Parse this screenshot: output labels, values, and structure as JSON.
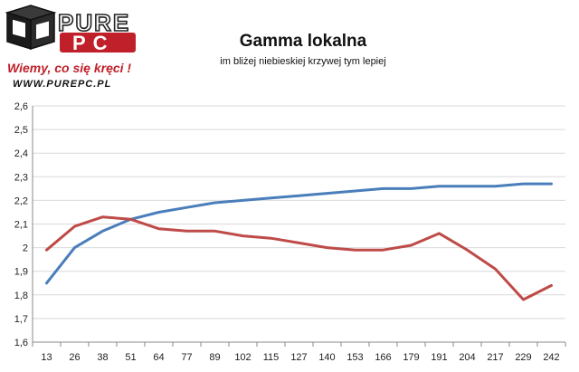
{
  "logo": {
    "word_top": "PURE",
    "word_bottom": "PC",
    "slogan": "Wiemy, co się kręci !",
    "url": "WWW.PUREPC.PL"
  },
  "chart_data": {
    "type": "line",
    "title": "Gamma lokalna",
    "subtitle": "im bliżej niebieskiej krzywej tym lepiej",
    "categories": [
      "13",
      "26",
      "38",
      "51",
      "64",
      "77",
      "89",
      "102",
      "115",
      "127",
      "140",
      "153",
      "166",
      "179",
      "191",
      "204",
      "217",
      "229",
      "242"
    ],
    "series": [
      {
        "color": "#4a7ebb",
        "values": [
          1.85,
          2.0,
          2.07,
          2.12,
          2.15,
          2.17,
          2.19,
          2.2,
          2.21,
          2.22,
          2.23,
          2.24,
          2.25,
          2.25,
          2.26,
          2.26,
          2.26,
          2.27,
          2.27
        ]
      },
      {
        "color": "#be4b48",
        "values": [
          1.99,
          2.09,
          2.13,
          2.12,
          2.08,
          2.07,
          2.07,
          2.05,
          2.04,
          2.02,
          2.0,
          1.99,
          1.99,
          2.01,
          2.06,
          1.99,
          1.91,
          1.78,
          1.84
        ]
      }
    ],
    "ylim": [
      1.6,
      2.6
    ],
    "yticks": [
      "1,6",
      "1,7",
      "1,8",
      "1,9",
      "2",
      "2,1",
      "2,2",
      "2,3",
      "2,4",
      "2,5",
      "2,6"
    ],
    "grid": true,
    "legend": "none"
  }
}
